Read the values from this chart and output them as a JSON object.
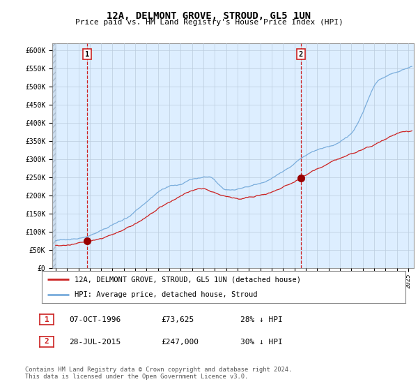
{
  "title": "12A, DELMONT GROVE, STROUD, GL5 1UN",
  "subtitle": "Price paid vs. HM Land Registry's House Price Index (HPI)",
  "ylabel_ticks": [
    "£0",
    "£50K",
    "£100K",
    "£150K",
    "£200K",
    "£250K",
    "£300K",
    "£350K",
    "£400K",
    "£450K",
    "£500K",
    "£550K",
    "£600K"
  ],
  "ylim": [
    0,
    620000
  ],
  "xlim_start": 1993.7,
  "xlim_end": 2025.5,
  "purchase1_date": 1996.77,
  "purchase1_price": 73625,
  "purchase1_label": "1",
  "purchase2_date": 2015.56,
  "purchase2_price": 247000,
  "purchase2_label": "2",
  "legend_line1": "12A, DELMONT GROVE, STROUD, GL5 1UN (detached house)",
  "legend_line2": "HPI: Average price, detached house, Stroud",
  "table_row1": [
    "1",
    "07-OCT-1996",
    "£73,625",
    "28% ↓ HPI"
  ],
  "table_row2": [
    "2",
    "28-JUL-2015",
    "£247,000",
    "30% ↓ HPI"
  ],
  "footer": "Contains HM Land Registry data © Crown copyright and database right 2024.\nThis data is licensed under the Open Government Licence v3.0.",
  "hpi_color": "#7aaddc",
  "price_color": "#cc2222",
  "vline_color": "#cc2222",
  "bg_fill_color": "#ddeeff",
  "grid_color": "#bbccdd"
}
